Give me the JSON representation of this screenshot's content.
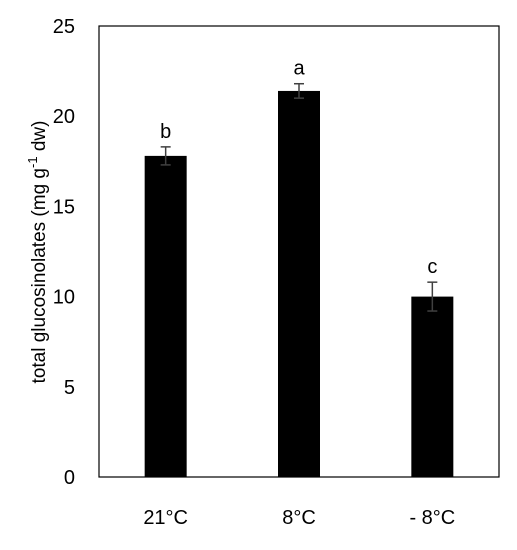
{
  "chart_data": {
    "type": "bar",
    "categories": [
      "21°C",
      "8°C",
      "- 8°C"
    ],
    "values": [
      17.8,
      21.4,
      10.0
    ],
    "errors": [
      0.5,
      0.4,
      0.8
    ],
    "significance": [
      "b",
      "a",
      "c"
    ],
    "ylabel": {
      "prefix": "total glucosinolates (mg g",
      "superscript": "-1",
      "suffix": " dw)"
    },
    "ylim": [
      0,
      25
    ],
    "yticks": [
      "0",
      "5",
      "10",
      "15",
      "20",
      "25"
    ],
    "grid": false,
    "legend": "none",
    "colors": {
      "bar": "#000000",
      "error_bar": "#404040",
      "frame": "#000000"
    }
  }
}
